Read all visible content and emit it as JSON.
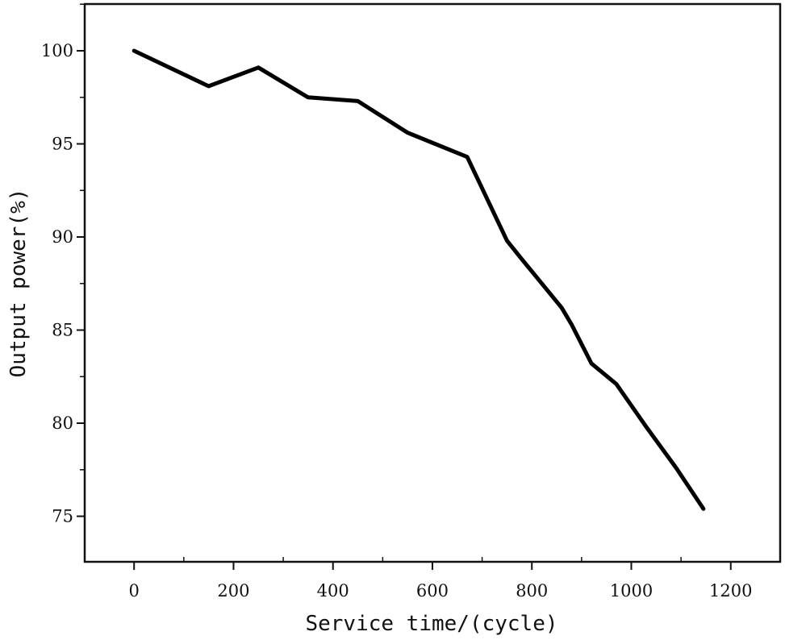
{
  "chart_data": {
    "type": "line",
    "title": "",
    "xlabel": "Service time/(cycle)",
    "ylabel": "Output power(%)",
    "xlim": [
      -100,
      1250
    ],
    "ylim": [
      72.5,
      102.5
    ],
    "x_ticks": [
      0,
      200,
      400,
      600,
      800,
      1000,
      1200
    ],
    "x_tick_labels": [
      "0",
      "200",
      "400",
      "600",
      "800",
      "1000",
      "1200"
    ],
    "y_ticks": [
      75,
      80,
      85,
      90,
      95,
      100
    ],
    "y_tick_labels": [
      "75",
      "80",
      "85",
      "90",
      "95",
      "100"
    ],
    "grid": false,
    "legend": "none",
    "series": [
      {
        "color": "#000000",
        "x": [
          0,
          150,
          250,
          350,
          450,
          550,
          670,
          750,
          780,
          860,
          880,
          920,
          970,
          1030,
          1090,
          1145
        ],
        "y": [
          100.0,
          98.1,
          99.1,
          97.5,
          97.3,
          95.6,
          94.3,
          89.8,
          88.8,
          86.2,
          85.3,
          83.2,
          82.1,
          79.8,
          77.6,
          75.4
        ]
      }
    ]
  }
}
